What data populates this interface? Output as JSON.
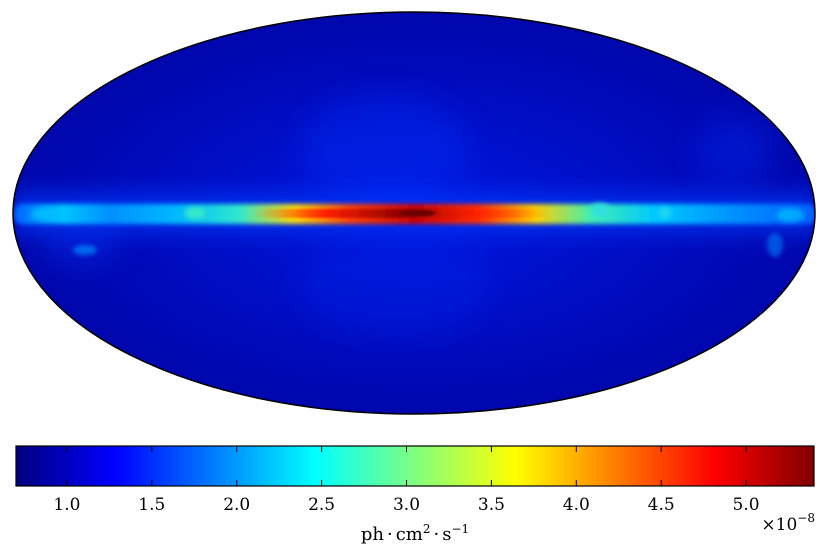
{
  "chart_data": {
    "type": "heatmap",
    "projection": "mollweide",
    "colormap": "jet",
    "colorbar": {
      "range": [
        0.7,
        5.4
      ],
      "ticks": [
        1.0,
        1.5,
        2.0,
        2.5,
        3.0,
        3.5,
        4.0,
        4.5,
        5.0
      ],
      "tick_labels": [
        "1.0",
        "1.5",
        "2.0",
        "2.5",
        "3.0",
        "3.5",
        "4.0",
        "4.5",
        "5.0"
      ],
      "label_parts": {
        "ph": "ph",
        "cm": "cm",
        "cm_exponent": "2",
        "s": "s",
        "s_exponent": "−1"
      },
      "offset_base": "×10",
      "offset_exponent": "−8"
    },
    "grid": false,
    "legend": "none"
  },
  "colors": {
    "background_level": "#00008f",
    "colormap_stops": [
      "#00007f",
      "#0000ff",
      "#007fff",
      "#00ffff",
      "#7fff7f",
      "#ffff00",
      "#ff7f00",
      "#ff0000",
      "#7f0000"
    ]
  }
}
